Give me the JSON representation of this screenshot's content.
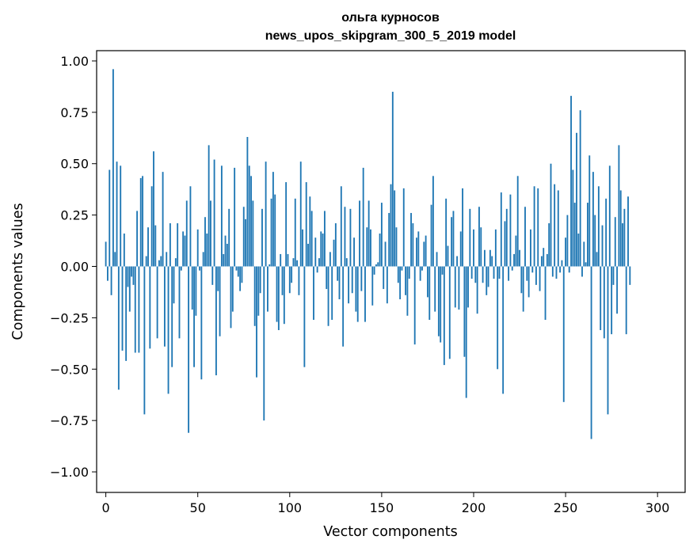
{
  "chart_data": {
    "type": "bar",
    "title": "ольга курносов",
    "subtitle": "news_upos_skipgram_300_5_2019 model",
    "xlabel": "Vector components",
    "ylabel": "Components values",
    "xlim": [
      -5,
      315
    ],
    "ylim": [
      -1.1,
      1.05
    ],
    "xticks": [
      0,
      50,
      100,
      150,
      200,
      250,
      300
    ],
    "xtick_labels": [
      "0",
      "50",
      "100",
      "150",
      "200",
      "250",
      "300"
    ],
    "yticks": [
      -1.0,
      -0.75,
      -0.5,
      -0.25,
      0.0,
      0.25,
      0.5,
      0.75,
      1.0
    ],
    "ytick_labels": [
      "−1.00",
      "−0.75",
      "−0.50",
      "−0.25",
      "0.00",
      "0.25",
      "0.50",
      "0.75",
      "1.00"
    ],
    "grid": false,
    "bar_color": "#1f77b4",
    "values": [
      0.12,
      -0.07,
      0.47,
      -0.14,
      0.96,
      0.07,
      0.51,
      -0.6,
      0.49,
      -0.41,
      0.16,
      -0.46,
      -0.1,
      -0.22,
      -0.05,
      -0.09,
      -0.42,
      0.27,
      -0.42,
      0.43,
      0.44,
      -0.72,
      0.05,
      0.19,
      -0.4,
      0.39,
      0.56,
      0.2,
      -0.35,
      0.03,
      0.05,
      0.46,
      -0.39,
      0.07,
      -0.62,
      0.21,
      -0.49,
      -0.18,
      0.04,
      0.21,
      -0.35,
      -0.02,
      0.17,
      0.15,
      0.32,
      -0.81,
      0.39,
      -0.21,
      -0.49,
      -0.24,
      0.18,
      -0.02,
      -0.55,
      0.07,
      0.24,
      0.16,
      0.59,
      0.32,
      -0.09,
      0.52,
      -0.53,
      -0.12,
      -0.34,
      0.49,
      0.06,
      0.15,
      0.11,
      0.28,
      -0.3,
      -0.22,
      0.48,
      -0.02,
      -0.05,
      -0.12,
      -0.08,
      0.29,
      0.23,
      0.63,
      0.49,
      0.44,
      0.32,
      -0.29,
      -0.54,
      -0.24,
      -0.13,
      0.28,
      -0.75,
      0.51,
      -0.22,
      0.01,
      0.33,
      0.46,
      0.35,
      -0.27,
      -0.31,
      0.06,
      -0.14,
      -0.28,
      0.41,
      0.06,
      -0.13,
      -0.08,
      0.04,
      0.33,
      0.03,
      -0.14,
      0.51,
      0.18,
      -0.49,
      0.41,
      0.11,
      0.34,
      0.27,
      -0.26,
      0.14,
      -0.03,
      0.04,
      0.17,
      0.16,
      0.27,
      -0.11,
      -0.29,
      0.07,
      -0.26,
      0.13,
      0.21,
      -0.07,
      -0.16,
      0.39,
      -0.39,
      0.29,
      0.04,
      -0.18,
      0.28,
      -0.13,
      0.14,
      -0.22,
      -0.27,
      0.32,
      -0.12,
      0.48,
      -0.27,
      0.19,
      0.32,
      0.18,
      -0.19,
      -0.04,
      0.01,
      0.02,
      0.16,
      0.31,
      -0.11,
      0.12,
      -0.18,
      0.26,
      0.4,
      0.85,
      0.37,
      0.19,
      -0.08,
      -0.16,
      -0.02,
      0.38,
      -0.14,
      -0.24,
      -0.06,
      0.26,
      0.21,
      -0.38,
      0.14,
      0.17,
      -0.07,
      -0.02,
      0.12,
      0.15,
      -0.15,
      -0.26,
      0.3,
      0.44,
      -0.22,
      0.07,
      -0.34,
      -0.37,
      -0.04,
      -0.48,
      0.33,
      0.1,
      -0.45,
      0.24,
      0.27,
      -0.2,
      0.05,
      -0.21,
      0.17,
      0.38,
      -0.44,
      -0.64,
      -0.2,
      0.28,
      -0.06,
      0.18,
      -0.08,
      -0.23,
      0.29,
      0.19,
      -0.08,
      0.08,
      -0.14,
      -0.1,
      0.08,
      0.05,
      -0.06,
      0.18,
      -0.5,
      -0.06,
      0.36,
      -0.62,
      0.22,
      0.28,
      -0.07,
      0.35,
      -0.02,
      0.06,
      0.15,
      0.44,
      0.08,
      -0.13,
      -0.22,
      0.29,
      -0.07,
      -0.15,
      0.18,
      -0.03,
      0.39,
      -0.09,
      0.38,
      -0.12,
      0.05,
      0.09,
      -0.26,
      0.06,
      0.21,
      0.5,
      -0.05,
      0.4,
      -0.06,
      0.37,
      -0.03,
      0.03,
      -0.66,
      0.14,
      0.25,
      -0.03,
      0.83,
      0.47,
      0.31,
      0.65,
      0.16,
      0.76,
      -0.05,
      0.12,
      0.02,
      0.31,
      0.54,
      -0.84,
      0.46,
      0.25,
      0.07,
      0.39,
      -0.31,
      0.2,
      -0.35,
      0.33,
      -0.72,
      0.49,
      -0.33,
      -0.09,
      0.24,
      -0.23,
      0.59,
      0.37,
      0.21,
      0.28,
      -0.33,
      0.34,
      -0.09
    ]
  }
}
